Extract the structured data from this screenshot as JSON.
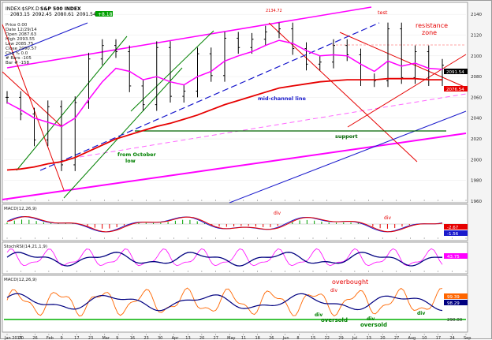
{
  "header": {
    "symbol": "INDEX:$SPX.D",
    "title": "S&P 500 INDEX",
    "last_prices": [
      "2083.15",
      "2092.45",
      "2080.61",
      "2091.54"
    ],
    "change": "+8.18"
  },
  "colors": {
    "background": "#ffffff",
    "price": "#000000",
    "ma_fast": "#ff00ff",
    "ma_slow": "#e60000",
    "channel": "#ff00ff",
    "trend_blue": "#1a1acc",
    "trend_green": "#008000",
    "trend_red": "#e60000",
    "support": "#006400",
    "annot_blue": "#1a1acc",
    "annot_red": "#e60000",
    "annot_green": "#008000",
    "macd_hist": "#00a000"
  },
  "info_box": {
    "lines": [
      "Price 0.00",
      "Date 12/29/14",
      "Open 2087.63",
      "High 2093.55",
      "Low 2085.75",
      "Close 2090.57",
      "Chg % 0.0",
      "# Bars -105",
      "Bar # -158"
    ]
  },
  "annotations": {
    "top_value": "2134.72",
    "test": "test",
    "resistance": "resistance",
    "zone": "zone",
    "mid_channel": "mid-channel line",
    "support": "support",
    "from_october": "from October",
    "low": "low",
    "macd_div": "div",
    "macd_div2": "div",
    "overbought": "overbought",
    "div_a": "div",
    "div_b": "div",
    "oversold_a": "oversold",
    "div_c": "div",
    "oversold_b": "oversold",
    "div_d": "div"
  },
  "panels": {
    "macd1_label": "MACD(12,26,9)",
    "macd1_value": "-2.67",
    "macd1_value2": "-1.56",
    "stoch_label": "StochRSI(14,21,1,9)",
    "stoch_value": "43.75",
    "macd2_label": "MACD(12,26,9)",
    "macd2_value": "99.39",
    "macd2_value2": "98.29",
    "macd2_value3": "290.00"
  },
  "price_tags": {
    "last": "2091.54",
    "ma": "2076.54"
  },
  "x_axis": {
    "labels": [
      "Jan 2015",
      "20",
      "26",
      "Feb",
      "9",
      "17",
      "23",
      "Mar",
      "9",
      "16",
      "23",
      "30",
      "Apr",
      "13",
      "20",
      "27",
      "May",
      "11",
      "18",
      "26",
      "Jun",
      "8",
      "15",
      "22",
      "29",
      "Jul",
      "13",
      "20",
      "27",
      "Aug",
      "10",
      "17",
      "24",
      "Sep"
    ]
  },
  "chart_data": {
    "type": "line",
    "title": "S&P 500 INDEX",
    "y_axis": {
      "ticks": [
        1960,
        1980,
        2000,
        2020,
        2040,
        2060,
        2080,
        2100,
        2120,
        2140
      ],
      "range": [
        1960,
        2150
      ]
    },
    "x": [
      "2015-01-02",
      "2015-01-09",
      "2015-01-16",
      "2015-01-23",
      "2015-01-30",
      "2015-02-06",
      "2015-02-13",
      "2015-02-20",
      "2015-02-27",
      "2015-03-06",
      "2015-03-13",
      "2015-03-20",
      "2015-03-27",
      "2015-04-02",
      "2015-04-10",
      "2015-04-17",
      "2015-04-24",
      "2015-05-01",
      "2015-05-08",
      "2015-05-15",
      "2015-05-22",
      "2015-05-29",
      "2015-06-05",
      "2015-06-12",
      "2015-06-19",
      "2015-06-26",
      "2015-07-02",
      "2015-07-10",
      "2015-07-17",
      "2015-07-24",
      "2015-07-31",
      "2015-08-07",
      "2015-08-14"
    ],
    "series": [
      {
        "type": "close",
        "values": [
          2060,
          2044,
          2019,
          2051,
          1995,
          2055,
          2097,
          2110,
          2104,
          2071,
          2053,
          2108,
          2061,
          2066,
          2102,
          2081,
          2117,
          2108,
          2116,
          2123,
          2126,
          2107,
          2092,
          2094,
          2110,
          2101,
          2077,
          2076,
          2126,
          2079,
          2104,
          2077,
          2091
        ]
      },
      {
        "type": "ma_fast",
        "values": [
          2055,
          2048,
          2040,
          2036,
          2032,
          2040,
          2058,
          2075,
          2088,
          2085,
          2077,
          2080,
          2075,
          2072,
          2080,
          2085,
          2095,
          2100,
          2104,
          2110,
          2115,
          2112,
          2105,
          2100,
          2101,
          2100,
          2092,
          2085,
          2095,
          2090,
          2093,
          2088,
          2087
        ]
      },
      {
        "type": "ma_slow",
        "values": [
          1990,
          1991,
          1993,
          1996,
          1998,
          2002,
          2008,
          2014,
          2020,
          2024,
          2028,
          2032,
          2035,
          2039,
          2043,
          2048,
          2053,
          2057,
          2061,
          2065,
          2069,
          2071,
          2073,
          2075,
          2076,
          2077,
          2077,
          2077,
          2078,
          2078,
          2078,
          2077,
          2077
        ]
      }
    ]
  }
}
